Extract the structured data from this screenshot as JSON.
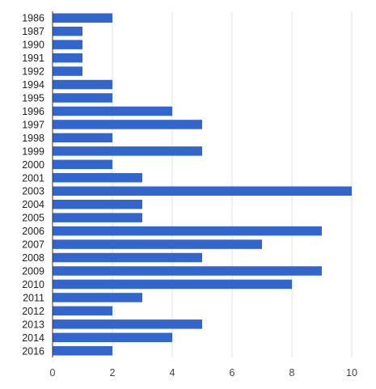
{
  "chart_data": {
    "type": "bar",
    "orientation": "horizontal",
    "title": "",
    "xlabel": "",
    "ylabel": "",
    "categories": [
      "1986",
      "1987",
      "1990",
      "1991",
      "1992",
      "1994",
      "1995",
      "1996",
      "1997",
      "1998",
      "1999",
      "2000",
      "2001",
      "2003",
      "2004",
      "2005",
      "2006",
      "2007",
      "2008",
      "2009",
      "2010",
      "2011",
      "2012",
      "2013",
      "2014",
      "2016"
    ],
    "values": [
      2,
      1,
      1,
      1,
      1,
      2,
      2,
      4,
      5,
      2,
      5,
      2,
      3,
      10,
      3,
      3,
      9,
      7,
      5,
      9,
      8,
      3,
      2,
      5,
      4,
      2
    ],
    "xlim": [
      0,
      10
    ],
    "xticks": [
      0,
      2,
      4,
      6,
      8,
      10
    ],
    "grid": "vertical",
    "legend": "none",
    "colors": {
      "bar": "#3366cc",
      "grid": "#e0e0e0",
      "axis": "#333333"
    }
  }
}
